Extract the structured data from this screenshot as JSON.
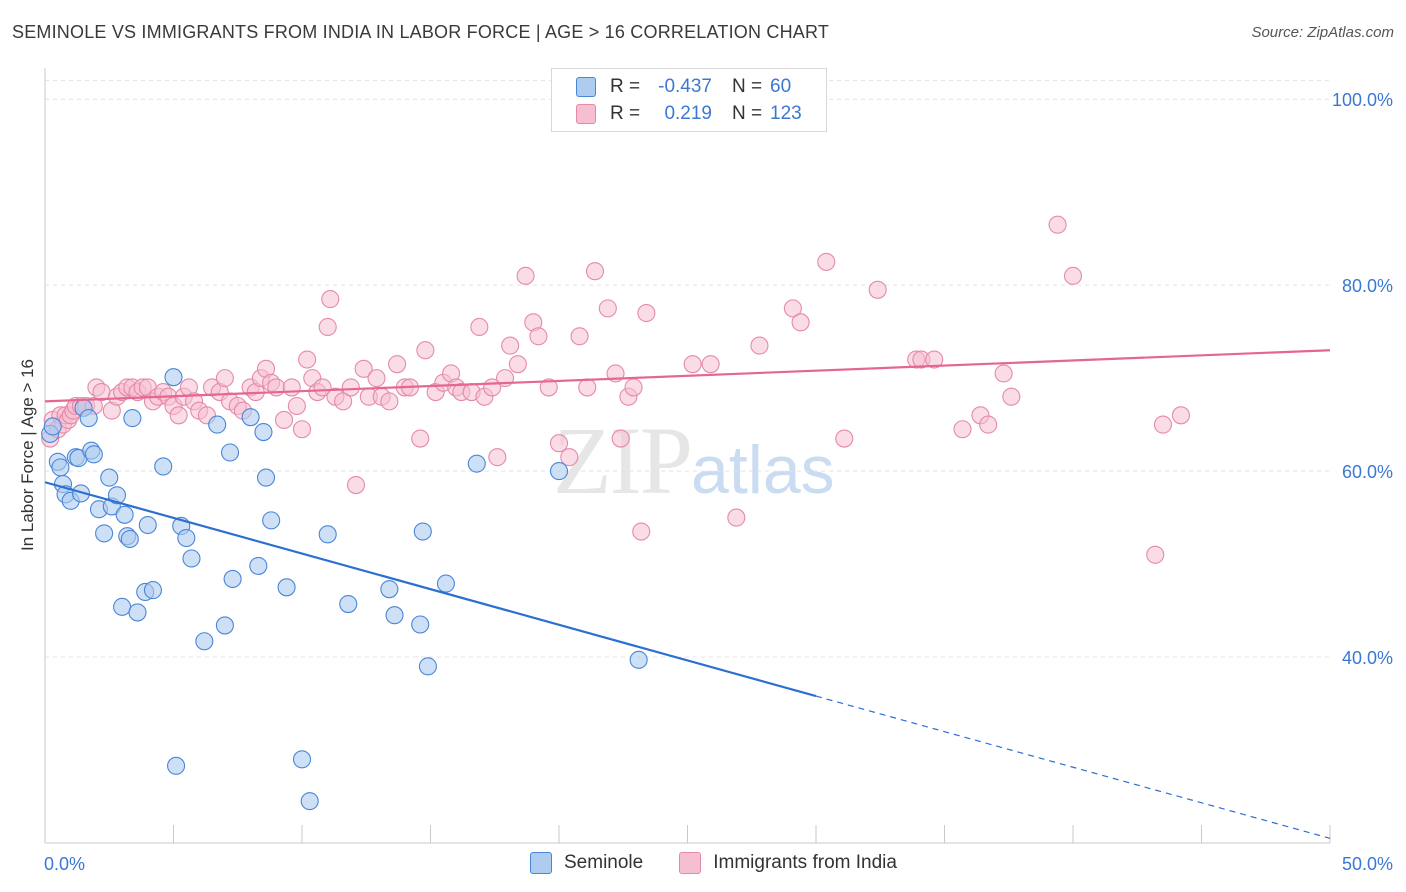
{
  "header": {
    "title": "SEMINOLE VS IMMIGRANTS FROM INDIA IN LABOR FORCE | AGE > 16 CORRELATION CHART",
    "source": "Source: ZipAtlas.com"
  },
  "watermark": {
    "zip": "ZIP",
    "atlas": "atlas"
  },
  "legend": {
    "rows": [
      {
        "r_label": "R =",
        "r_value": "-0.437",
        "n_label": "N =",
        "n_value": "60",
        "color": "#aecbf0"
      },
      {
        "r_label": "R =",
        "r_value": "0.219",
        "n_label": "N =",
        "n_value": "123",
        "color": "#f6bfd1"
      }
    ]
  },
  "bottom_legend": {
    "series1": "Seminole",
    "series2": "Immigrants from India"
  },
  "colors": {
    "seminole_fill": "#aecbf0",
    "seminole_stroke": "#4a86d8",
    "seminole_line": "#2c6fd0",
    "india_fill": "#f6bfd1",
    "india_stroke": "#e58aa8",
    "india_line": "#e4678f",
    "axis_text": "#3a78d4",
    "grid": "#e4e4e4"
  },
  "chart_data": {
    "type": "scatter",
    "title": "SEMINOLE VS IMMIGRANTS FROM INDIA IN LABOR FORCE | AGE > 16 CORRELATION CHART",
    "xlabel": "",
    "ylabel": "In Labor Force | Age > 16",
    "xlim": [
      0,
      50
    ],
    "ylim": [
      20,
      104
    ],
    "x_tick_labels": [
      "0.0%",
      "50.0%"
    ],
    "y_ticks": [
      40,
      60,
      80,
      100
    ],
    "y_tick_labels": [
      "40.0%",
      "60.0%",
      "80.0%",
      "100.0%"
    ],
    "grid": true,
    "legend_placement": "top-center",
    "series": [
      {
        "name": "Seminole",
        "r": -0.437,
        "n": 60,
        "trend": {
          "x0": 0,
          "y0": 58.8,
          "x1": 30,
          "y1": 35.8,
          "dash_to_x": 50,
          "dash_to_y": 20.5
        },
        "points": [
          [
            0.2,
            64.0
          ],
          [
            0.3,
            64.8
          ],
          [
            0.5,
            61.0
          ],
          [
            0.6,
            60.4
          ],
          [
            0.7,
            58.6
          ],
          [
            0.8,
            57.5
          ],
          [
            1.0,
            56.8
          ],
          [
            1.2,
            61.5
          ],
          [
            1.3,
            61.4
          ],
          [
            1.4,
            57.6
          ],
          [
            1.5,
            66.8
          ],
          [
            1.7,
            65.7
          ],
          [
            1.8,
            62.2
          ],
          [
            1.9,
            61.8
          ],
          [
            2.1,
            55.9
          ],
          [
            2.3,
            53.3
          ],
          [
            2.5,
            59.3
          ],
          [
            2.6,
            56.2
          ],
          [
            2.8,
            57.4
          ],
          [
            3.0,
            45.4
          ],
          [
            3.1,
            55.3
          ],
          [
            3.2,
            53.0
          ],
          [
            3.3,
            52.7
          ],
          [
            3.4,
            65.7
          ],
          [
            3.6,
            44.8
          ],
          [
            3.9,
            47.0
          ],
          [
            4.0,
            54.2
          ],
          [
            4.2,
            47.2
          ],
          [
            4.6,
            60.5
          ],
          [
            5.0,
            70.1
          ],
          [
            5.1,
            28.3
          ],
          [
            5.3,
            54.1
          ],
          [
            5.5,
            52.8
          ],
          [
            5.7,
            50.6
          ],
          [
            6.2,
            41.7
          ],
          [
            6.7,
            65.0
          ],
          [
            7.0,
            43.4
          ],
          [
            7.2,
            62.0
          ],
          [
            7.3,
            48.4
          ],
          [
            8.0,
            65.8
          ],
          [
            8.3,
            49.8
          ],
          [
            8.5,
            64.2
          ],
          [
            8.6,
            59.3
          ],
          [
            8.8,
            54.7
          ],
          [
            9.4,
            47.5
          ],
          [
            10.0,
            29.0
          ],
          [
            10.3,
            24.5
          ],
          [
            11.0,
            53.2
          ],
          [
            11.8,
            45.7
          ],
          [
            13.4,
            47.3
          ],
          [
            13.6,
            44.5
          ],
          [
            14.6,
            43.5
          ],
          [
            14.7,
            53.5
          ],
          [
            14.9,
            39.0
          ],
          [
            15.6,
            47.9
          ],
          [
            16.8,
            60.8
          ],
          [
            20.0,
            60.0
          ],
          [
            23.1,
            39.7
          ]
        ]
      },
      {
        "name": "Immigrants from India",
        "r": 0.219,
        "n": 123,
        "trend": {
          "x0": 0,
          "y0": 67.5,
          "x1": 50,
          "y1": 73.0
        },
        "points": [
          [
            0.2,
            63.5
          ],
          [
            0.3,
            65.5
          ],
          [
            0.5,
            64.5
          ],
          [
            0.6,
            66.0
          ],
          [
            0.7,
            65.0
          ],
          [
            0.8,
            66.0
          ],
          [
            0.9,
            65.5
          ],
          [
            1.0,
            66.0
          ],
          [
            1.1,
            66.5
          ],
          [
            1.2,
            67.0
          ],
          [
            1.4,
            67.0
          ],
          [
            1.6,
            67.0
          ],
          [
            1.9,
            67.0
          ],
          [
            2.0,
            69.0
          ],
          [
            2.2,
            68.5
          ],
          [
            2.6,
            66.5
          ],
          [
            2.8,
            68.0
          ],
          [
            3.0,
            68.5
          ],
          [
            3.2,
            69.0
          ],
          [
            3.4,
            69.0
          ],
          [
            3.6,
            68.5
          ],
          [
            3.8,
            69.0
          ],
          [
            4.0,
            69.0
          ],
          [
            4.2,
            67.5
          ],
          [
            4.4,
            68.0
          ],
          [
            4.6,
            68.5
          ],
          [
            4.8,
            68.0
          ],
          [
            5.0,
            67.0
          ],
          [
            5.2,
            66.0
          ],
          [
            5.4,
            68.0
          ],
          [
            5.6,
            69.0
          ],
          [
            5.8,
            67.5
          ],
          [
            6.0,
            66.5
          ],
          [
            6.3,
            66.0
          ],
          [
            6.5,
            69.0
          ],
          [
            6.8,
            68.5
          ],
          [
            7.0,
            70.0
          ],
          [
            7.2,
            67.5
          ],
          [
            7.5,
            67.0
          ],
          [
            7.7,
            66.5
          ],
          [
            8.0,
            69.0
          ],
          [
            8.2,
            68.5
          ],
          [
            8.4,
            70.0
          ],
          [
            8.6,
            71.0
          ],
          [
            8.8,
            69.5
          ],
          [
            9.0,
            69.0
          ],
          [
            9.3,
            65.5
          ],
          [
            9.6,
            69.0
          ],
          [
            9.8,
            67.0
          ],
          [
            10.0,
            64.5
          ],
          [
            10.2,
            72.0
          ],
          [
            10.4,
            70.0
          ],
          [
            10.6,
            68.5
          ],
          [
            10.8,
            69.0
          ],
          [
            11.0,
            75.5
          ],
          [
            11.1,
            78.5
          ],
          [
            11.3,
            68.0
          ],
          [
            11.6,
            67.5
          ],
          [
            11.9,
            69.0
          ],
          [
            12.1,
            58.5
          ],
          [
            12.4,
            71.0
          ],
          [
            12.6,
            68.0
          ],
          [
            12.9,
            70.0
          ],
          [
            13.1,
            68.0
          ],
          [
            13.4,
            67.5
          ],
          [
            13.7,
            71.5
          ],
          [
            14.0,
            69.0
          ],
          [
            14.2,
            69.0
          ],
          [
            14.6,
            63.5
          ],
          [
            14.8,
            73.0
          ],
          [
            15.2,
            68.5
          ],
          [
            15.5,
            69.5
          ],
          [
            15.8,
            70.5
          ],
          [
            16.0,
            69.0
          ],
          [
            16.2,
            68.5
          ],
          [
            16.6,
            68.5
          ],
          [
            16.9,
            75.5
          ],
          [
            17.1,
            68.0
          ],
          [
            17.4,
            69.0
          ],
          [
            17.6,
            61.5
          ],
          [
            17.9,
            70.0
          ],
          [
            18.1,
            73.5
          ],
          [
            18.4,
            71.5
          ],
          [
            18.7,
            81.0
          ],
          [
            19.0,
            76.0
          ],
          [
            19.2,
            74.5
          ],
          [
            19.6,
            69.0
          ],
          [
            20.0,
            63.0
          ],
          [
            20.4,
            61.5
          ],
          [
            20.8,
            74.5
          ],
          [
            21.1,
            69.0
          ],
          [
            21.4,
            81.5
          ],
          [
            21.9,
            77.5
          ],
          [
            22.2,
            70.5
          ],
          [
            22.4,
            63.5
          ],
          [
            22.7,
            68.0
          ],
          [
            22.9,
            69.0
          ],
          [
            23.2,
            53.5
          ],
          [
            23.4,
            77.0
          ],
          [
            25.2,
            71.5
          ],
          [
            25.9,
            71.5
          ],
          [
            26.9,
            55.0
          ],
          [
            27.8,
            73.5
          ],
          [
            29.1,
            77.5
          ],
          [
            29.4,
            76.0
          ],
          [
            31.1,
            63.5
          ],
          [
            32.4,
            79.5
          ],
          [
            33.9,
            72.0
          ],
          [
            34.1,
            72.0
          ],
          [
            34.6,
            72.0
          ],
          [
            35.7,
            64.5
          ],
          [
            36.4,
            66.0
          ],
          [
            36.7,
            65.0
          ],
          [
            37.3,
            70.5
          ],
          [
            37.6,
            68.0
          ],
          [
            39.4,
            86.5
          ],
          [
            40.0,
            81.0
          ],
          [
            43.2,
            51.0
          ],
          [
            43.5,
            65.0
          ],
          [
            44.2,
            66.0
          ],
          [
            30.4,
            82.5
          ]
        ]
      }
    ]
  }
}
